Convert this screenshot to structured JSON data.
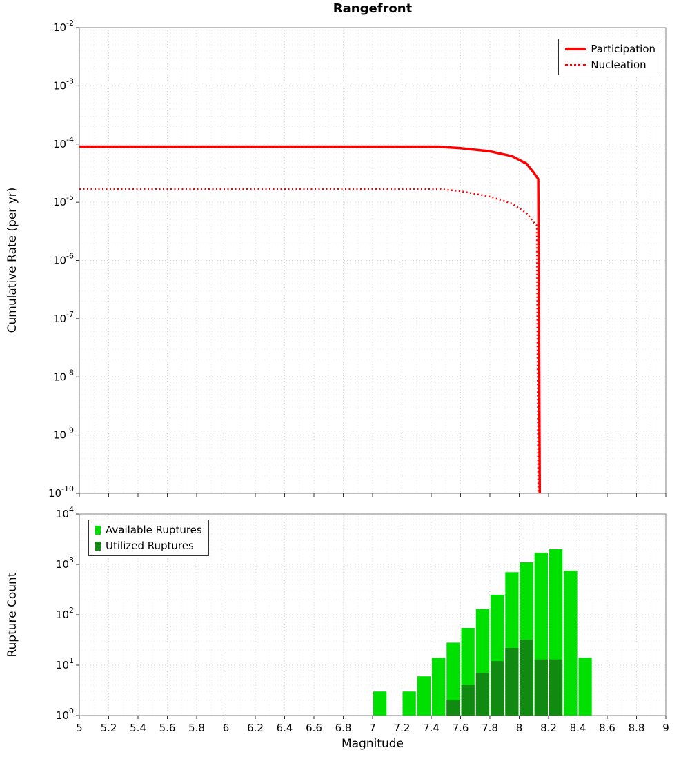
{
  "title": "Rangefront",
  "chart_data": [
    {
      "type": "line",
      "title": "Rangefront",
      "xlabel": "Magnitude",
      "ylabel": "Cumulative Rate (per yr)",
      "xlim": [
        5,
        9
      ],
      "x_tick_step": 0.2,
      "ylim": [
        1e-10,
        0.01
      ],
      "ylim_log10": [
        -10,
        -2
      ],
      "grid": true,
      "legend_position": "top-right",
      "series": [
        {
          "name": "Participation",
          "color": "#ff0000",
          "style": "solid",
          "points": [
            [
              5.0,
              9e-05
            ],
            [
              7.45,
              9e-05
            ],
            [
              7.6,
              8.5e-05
            ],
            [
              7.8,
              7.5e-05
            ],
            [
              7.95,
              6.2e-05
            ],
            [
              8.05,
              4.6e-05
            ],
            [
              8.1,
              3.2e-05
            ],
            [
              8.13,
              2.5e-05
            ],
            [
              8.14,
              1e-10
            ]
          ]
        },
        {
          "name": "Nucleation",
          "color": "#ff0000",
          "style": "dotted",
          "points": [
            [
              5.0,
              1.7e-05
            ],
            [
              7.45,
              1.7e-05
            ],
            [
              7.6,
              1.55e-05
            ],
            [
              7.8,
              1.25e-05
            ],
            [
              7.95,
              9.5e-06
            ],
            [
              8.05,
              6.5e-06
            ],
            [
              8.1,
              4.5e-06
            ],
            [
              8.12,
              4e-06
            ],
            [
              8.13,
              1e-10
            ]
          ]
        }
      ]
    },
    {
      "type": "bar",
      "title": "",
      "xlabel": "Magnitude",
      "ylabel": "Rupture Count",
      "xlim": [
        5,
        9
      ],
      "x_tick_step": 0.2,
      "ylim": [
        1,
        10000
      ],
      "ylim_log10": [
        0,
        4
      ],
      "bin_width": 0.1,
      "grid": true,
      "legend_position": "top-left",
      "series": [
        {
          "name": "Available Ruptures",
          "color": "#00e000",
          "bins": [
            7.0,
            7.2,
            7.3,
            7.4,
            7.5,
            7.6,
            7.7,
            7.8,
            7.9,
            8.0,
            8.1,
            8.2,
            8.3,
            8.4
          ],
          "values": [
            3,
            3,
            6,
            14,
            28,
            55,
            130,
            250,
            700,
            1100,
            1700,
            2000,
            750,
            14
          ]
        },
        {
          "name": "Utilized Ruptures",
          "color": "#108a10",
          "bins": [
            7.5,
            7.6,
            7.7,
            7.8,
            7.9,
            8.0,
            8.1,
            8.2
          ],
          "values": [
            2,
            4,
            7,
            12,
            22,
            32,
            13,
            13
          ]
        }
      ]
    }
  ]
}
